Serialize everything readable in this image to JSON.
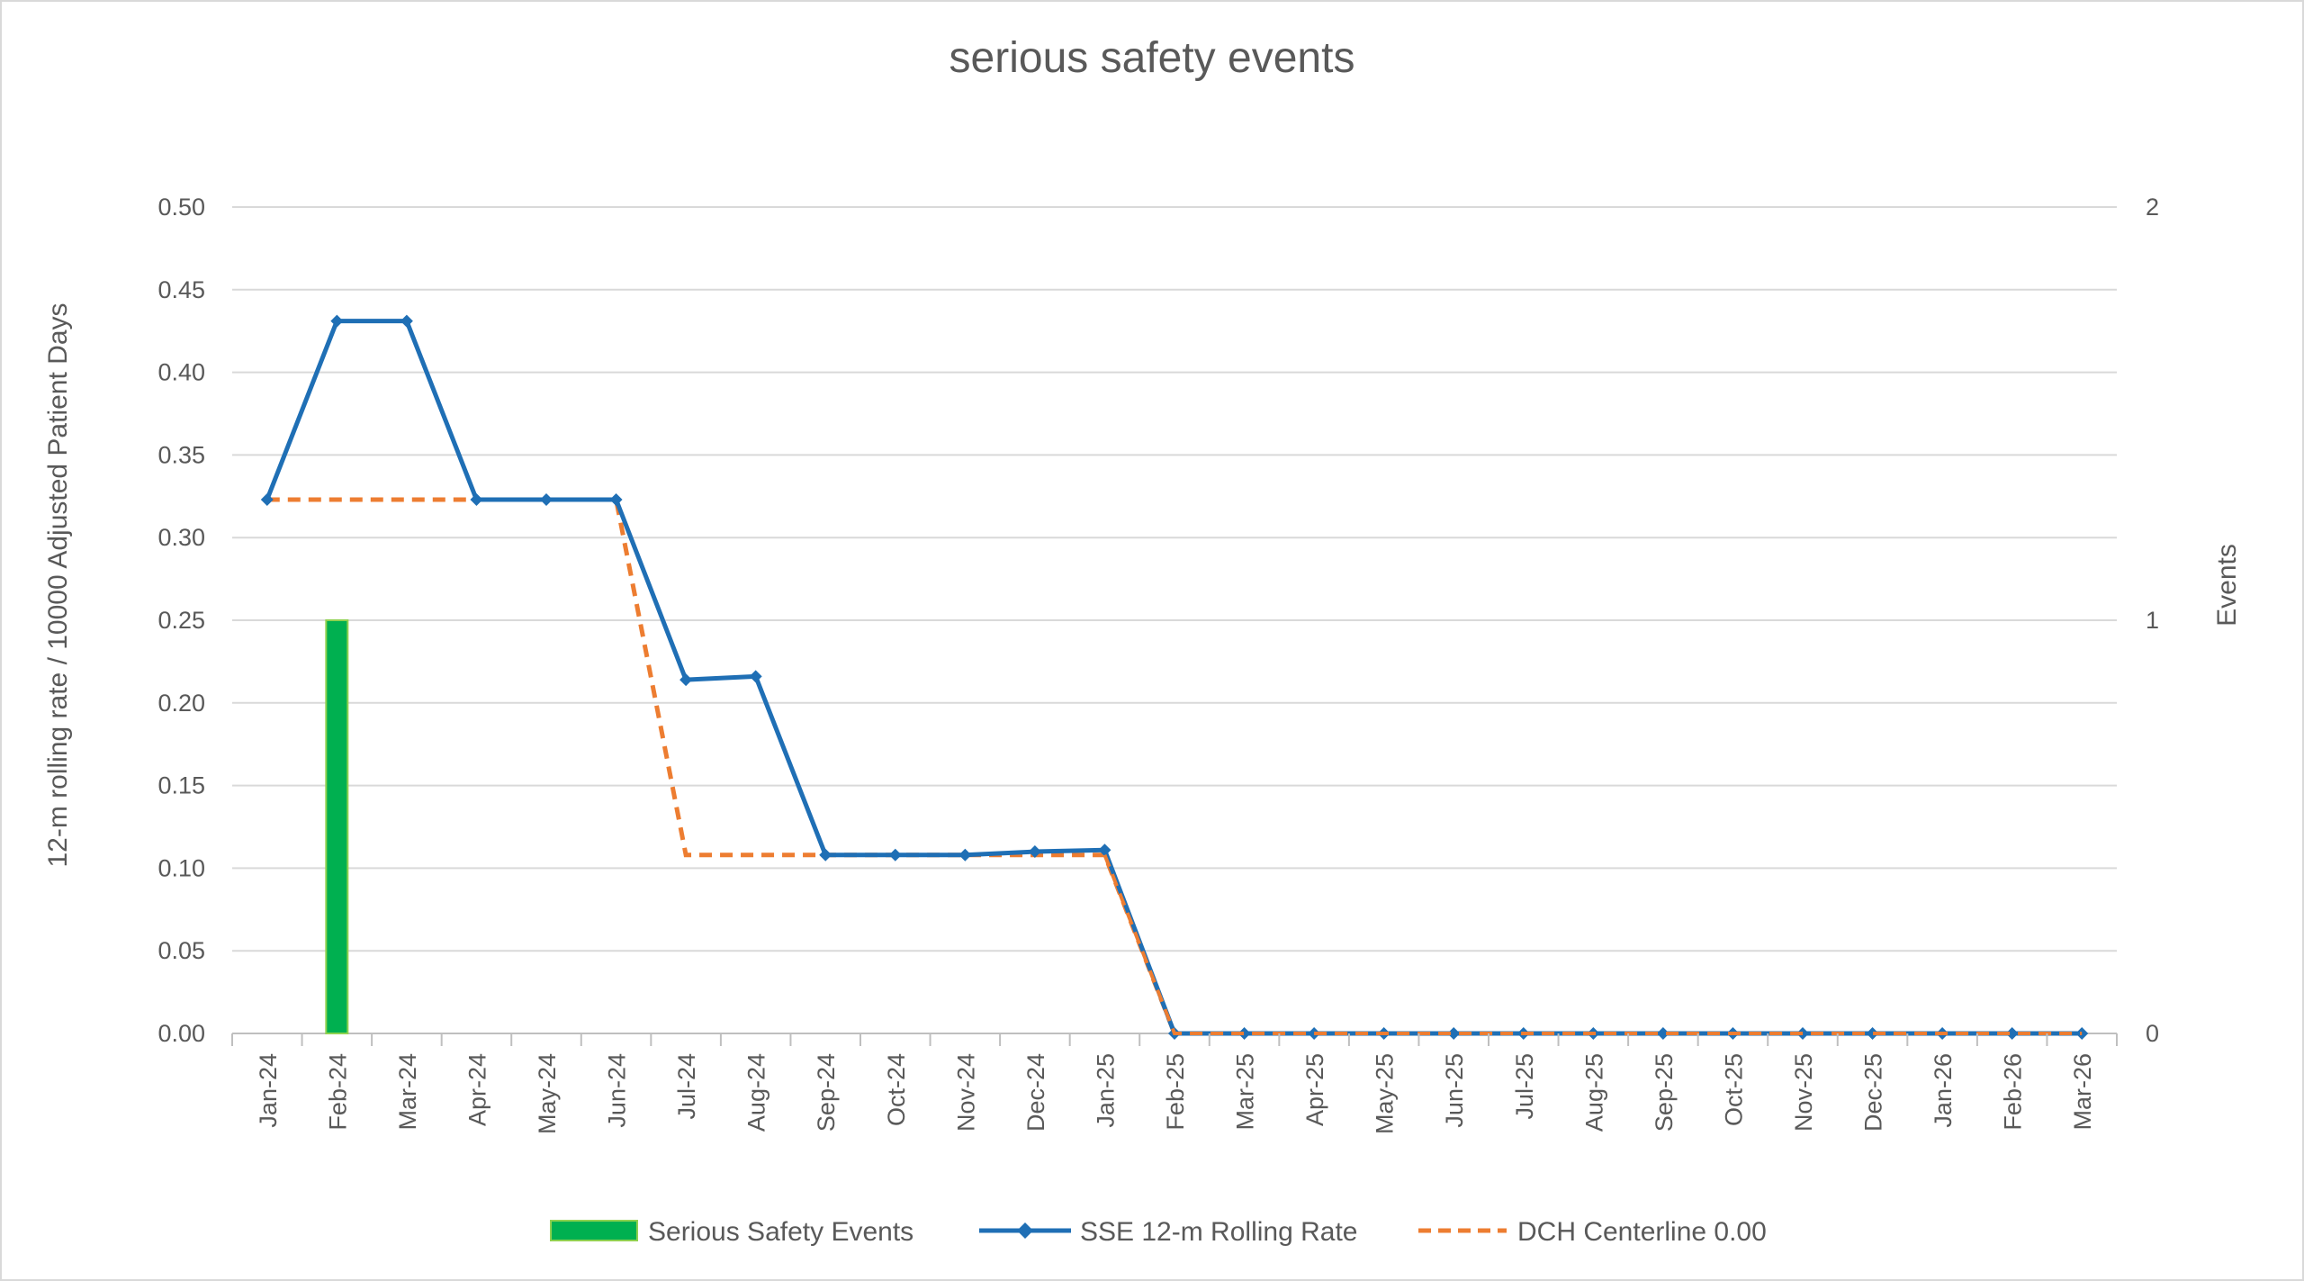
{
  "chart_data": {
    "type": "line",
    "title": "serious safety events",
    "ylabel": "12-m rolling rate / 10000 Adjusted Patient Days",
    "y2label": "Events",
    "ylim": [
      0,
      0.5
    ],
    "y2lim": [
      0,
      2
    ],
    "yticks": [
      "0.00",
      "0.05",
      "0.10",
      "0.15",
      "0.20",
      "0.25",
      "0.30",
      "0.35",
      "0.40",
      "0.45",
      "0.50"
    ],
    "y2ticks": [
      "0",
      "1",
      "2"
    ],
    "categories": [
      "Jan-24",
      "Feb-24",
      "Mar-24",
      "Apr-24",
      "May-24",
      "Jun-24",
      "Jul-24",
      "Aug-24",
      "Sep-24",
      "Oct-24",
      "Nov-24",
      "Dec-24",
      "Jan-25",
      "Feb-25",
      "Mar-25",
      "Apr-25",
      "May-25",
      "Jun-25",
      "Jul-25",
      "Aug-25",
      "Sep-25",
      "Oct-25",
      "Nov-25",
      "Dec-25",
      "Jan-26",
      "Feb-26",
      "Mar-26"
    ],
    "grid": true,
    "legend_position": "bottom",
    "series": [
      {
        "name": "Serious Safety Events",
        "type": "bar",
        "axis": "secondary",
        "color": "#00b050",
        "values": [
          0,
          1,
          0,
          0,
          0,
          0,
          0,
          0,
          0,
          0,
          0,
          0,
          0,
          null,
          null,
          null,
          null,
          null,
          null,
          null,
          null,
          null,
          null,
          null,
          null,
          null,
          null
        ]
      },
      {
        "name": "SSE 12-m Rolling Rate",
        "type": "line",
        "axis": "primary",
        "color": "#1f6fb5",
        "marker": "diamond",
        "values": [
          0.323,
          0.431,
          0.431,
          0.323,
          0.323,
          0.323,
          0.214,
          0.216,
          0.108,
          0.108,
          0.108,
          0.11,
          0.111,
          0,
          0,
          0,
          0,
          0,
          0,
          0,
          0,
          0,
          0,
          0,
          0,
          0,
          0
        ]
      },
      {
        "name": "DCH Centerline 0.00",
        "type": "line",
        "axis": "primary",
        "color": "#ed7d31",
        "dash": "dashed",
        "values": [
          0.323,
          0.323,
          0.323,
          0.323,
          0.323,
          0.323,
          0.108,
          0.108,
          0.108,
          0.108,
          0.108,
          0.108,
          0.108,
          0,
          0,
          0,
          0,
          0,
          0,
          0,
          0,
          0,
          0,
          0,
          0,
          0,
          0
        ]
      }
    ]
  }
}
